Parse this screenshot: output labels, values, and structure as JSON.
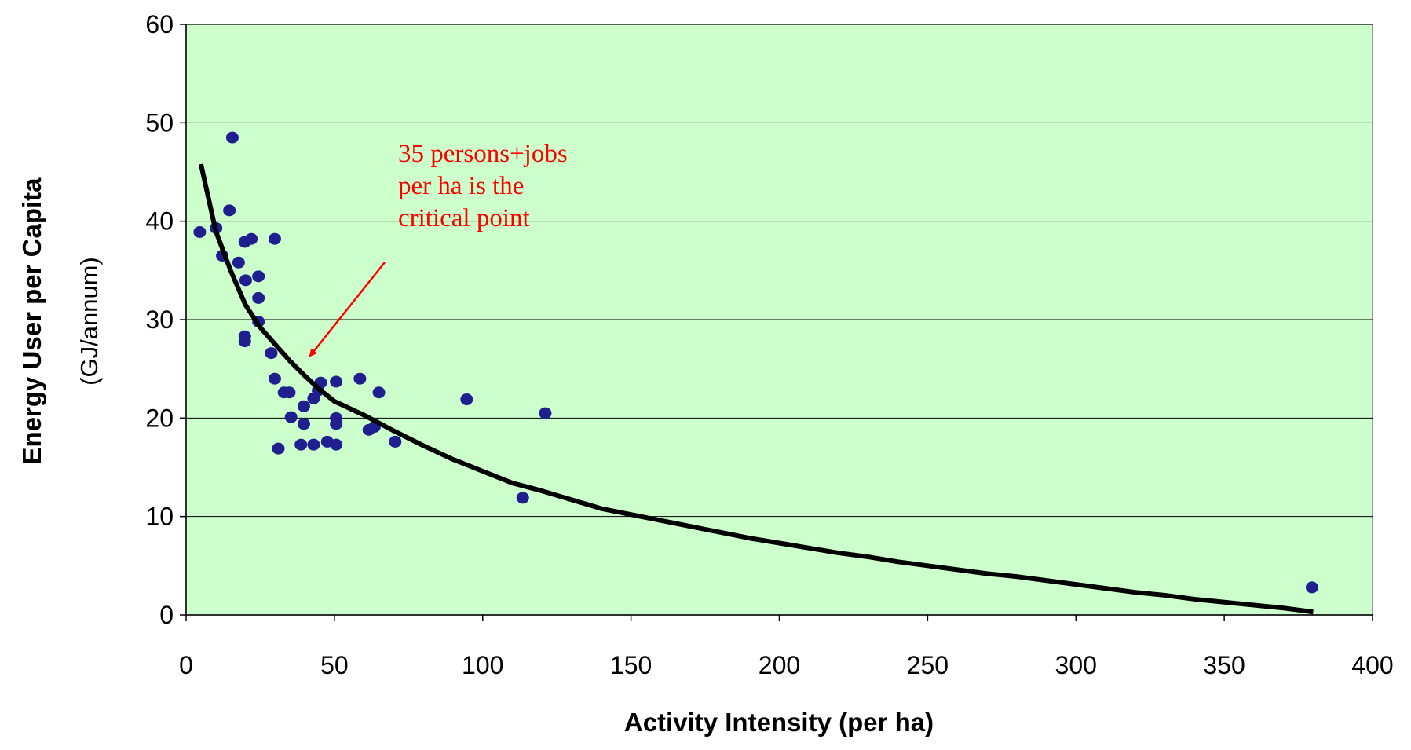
{
  "chart_data": {
    "type": "scatter",
    "x_label": "Activity Intensity (per ha)",
    "y_label": "Energy User per Capita",
    "y_label_unit": "(GJ/annum)",
    "annotation": [
      "35 persons+jobs",
      "per ha is the",
      "critical point"
    ],
    "annotation_color": "#ff0000",
    "plot_background": "#ccffcc",
    "grid": true,
    "xlim": [
      0,
      400
    ],
    "xticks": [
      0,
      50,
      100,
      150,
      200,
      250,
      300,
      350,
      400
    ],
    "ylim": [
      0,
      60
    ],
    "yticks": [
      0,
      10,
      20,
      30,
      40,
      50,
      60
    ],
    "series": [
      {
        "type": "scatter",
        "color": "#1f1f8f",
        "x": [
          4.6,
          10.1,
          12.2,
          15.6,
          14.6,
          17.7,
          19.8,
          22.0,
          20.1,
          24.4,
          24.4,
          24.4,
          19.8,
          19.8,
          28.7,
          29.9,
          29.9,
          31.1,
          33.0,
          34.8,
          35.4,
          38.7,
          39.7,
          39.7,
          43.0,
          43.0,
          44.5,
          45.4,
          47.6,
          50.6,
          50.6,
          50.6,
          50.6,
          58.6,
          61.6,
          63.5,
          65.0,
          70.5,
          94.6,
          113.5,
          121.1,
          379.6
        ],
        "values": [
          38.9,
          39.3,
          36.5,
          48.5,
          41.1,
          35.8,
          37.9,
          38.2,
          34.0,
          34.4,
          32.2,
          29.8,
          28.3,
          27.8,
          26.6,
          38.2,
          24.0,
          16.9,
          22.6,
          22.6,
          20.1,
          17.3,
          21.2,
          19.4,
          17.3,
          22.0,
          22.8,
          23.6,
          17.6,
          23.7,
          20.0,
          19.4,
          17.3,
          24.0,
          18.8,
          19.1,
          22.6,
          17.6,
          21.9,
          11.9,
          20.5,
          2.8
        ]
      },
      {
        "type": "line",
        "color": "#000000",
        "x": [
          5,
          10,
          15,
          20,
          25,
          30,
          35,
          40,
          45,
          50,
          60,
          70,
          80,
          90,
          100,
          110,
          120,
          130,
          140,
          150,
          160,
          170,
          180,
          190,
          200,
          210,
          220,
          230,
          240,
          250,
          260,
          270,
          280,
          290,
          300,
          310,
          320,
          330,
          340,
          350,
          360,
          370,
          380
        ],
        "values": [
          45.8,
          39,
          35,
          31.5,
          29.2,
          27.5,
          25.8,
          24.3,
          22.9,
          21.7,
          20.3,
          18.7,
          17.2,
          15.8,
          14.6,
          13.4,
          12.6,
          11.7,
          10.8,
          10.2,
          9.6,
          9.0,
          8.4,
          7.8,
          7.3,
          6.8,
          6.3,
          5.9,
          5.4,
          5.0,
          4.6,
          4.2,
          3.9,
          3.5,
          3.1,
          2.7,
          2.3,
          2.0,
          1.6,
          1.3,
          1.0,
          0.7,
          0.3
        ]
      }
    ]
  }
}
